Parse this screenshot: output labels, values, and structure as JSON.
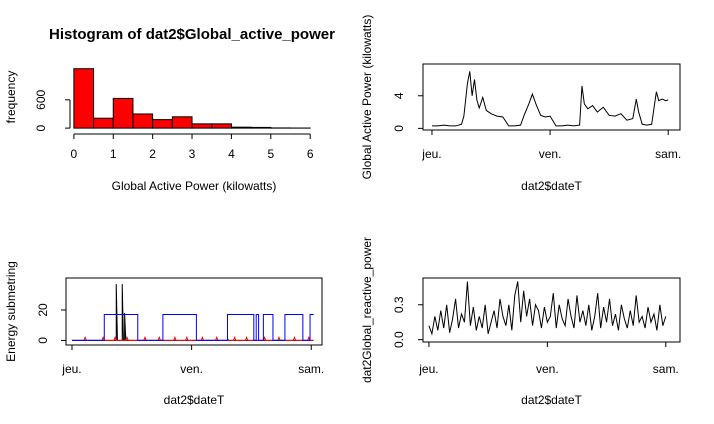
{
  "chart_data": [
    {
      "type": "histogram",
      "title": "Histogram of dat2$Global_active_power",
      "xlabel": "Global Active Power (kilowatts)",
      "ylabel": "frequency",
      "bins": [
        0,
        0.5,
        1,
        1.5,
        2,
        2.5,
        3,
        3.5,
        4,
        4.5,
        5,
        5.5,
        6
      ],
      "values": [
        1260,
        210,
        630,
        300,
        180,
        240,
        90,
        90,
        20,
        15,
        4,
        2
      ],
      "color": "#ff0000",
      "xlim": [
        -0.2,
        6.3
      ],
      "xticks": [
        0,
        1,
        2,
        3,
        4,
        5,
        6
      ],
      "ylim": [
        -40,
        1360
      ],
      "yticks": [
        0,
        600
      ]
    },
    {
      "type": "line",
      "xlabel": "dat2$dateT",
      "ylabel": "Global Active Power (kilowatts)",
      "color": "#000000",
      "x": [
        0,
        0.05,
        0.1,
        0.15,
        0.2,
        0.25,
        0.27,
        0.3,
        0.32,
        0.34,
        0.36,
        0.38,
        0.4,
        0.43,
        0.46,
        0.5,
        0.55,
        0.6,
        0.65,
        0.7,
        0.75,
        0.78,
        0.82,
        0.85,
        0.88,
        0.92,
        0.96,
        1.0,
        1.05,
        1.1,
        1.15,
        1.2,
        1.25,
        1.27,
        1.29,
        1.32,
        1.36,
        1.4,
        1.45,
        1.5,
        1.55,
        1.6,
        1.65,
        1.7,
        1.73,
        1.75,
        1.78,
        1.82,
        1.86,
        1.9,
        1.92,
        1.95,
        1.98,
        2.0
      ],
      "values": [
        0.3,
        0.3,
        0.4,
        0.3,
        0.3,
        0.5,
        1.5,
        5.5,
        7.0,
        4.0,
        6.0,
        3.5,
        2.5,
        3.8,
        2.2,
        1.8,
        1.5,
        1.4,
        0.3,
        0.3,
        0.4,
        1.6,
        3.0,
        4.2,
        3.0,
        1.6,
        1.4,
        1.5,
        0.3,
        0.3,
        0.4,
        0.3,
        0.4,
        5.2,
        3.0,
        2.4,
        2.8,
        2.0,
        2.6,
        1.6,
        1.5,
        1.8,
        1.0,
        1.2,
        3.6,
        2.0,
        0.5,
        0.4,
        0.5,
        4.5,
        3.4,
        3.6,
        3.4,
        3.5
      ],
      "xlim": [
        -0.076,
        2.1
      ],
      "xticks": [
        {
          "value": 0,
          "label": "jeu."
        },
        {
          "value": 1,
          "label": "ven."
        },
        {
          "value": 2,
          "label": "sam."
        }
      ],
      "ylim": [
        -0.2,
        7.9
      ],
      "yticks": [
        0,
        4
      ]
    },
    {
      "type": "line",
      "xlabel": "dat2$dateT",
      "ylabel": "Energy submetring",
      "series": [
        {
          "color": "#000000",
          "x": [
            0,
            0.37,
            0.37,
            0.38,
            0.42,
            0.42,
            0.43,
            0.44,
            0.44,
            0.45,
            1.3,
            1.3,
            1.31,
            2.02
          ],
          "values": [
            0,
            0,
            37,
            0,
            0,
            37,
            0,
            0,
            18,
            0,
            0,
            1,
            0,
            0
          ]
        },
        {
          "color": "#ff0000",
          "x": [
            0,
            0.1,
            0.11,
            0.12,
            0.25,
            0.26,
            0.27,
            0.35,
            0.36,
            0.37,
            0.45,
            0.46,
            0.47,
            0.6,
            0.61,
            0.62,
            0.72,
            0.73,
            0.74,
            0.85,
            0.86,
            0.87,
            0.95,
            0.96,
            0.97,
            1.08,
            1.09,
            1.1,
            1.2,
            1.21,
            1.22,
            1.35,
            1.36,
            1.37,
            1.45,
            1.46,
            1.47,
            1.6,
            1.61,
            1.62,
            1.72,
            1.73,
            1.74,
            1.85,
            1.86,
            1.87,
            1.97,
            1.98,
            1.99,
            2.02
          ],
          "values": [
            0,
            0,
            2,
            0,
            0,
            2,
            0,
            0,
            2,
            0,
            0,
            2,
            0,
            0,
            2,
            0,
            0,
            2,
            0,
            0,
            2,
            0,
            0,
            2,
            0,
            0,
            2,
            0,
            0,
            2,
            0,
            0,
            2,
            0,
            0,
            2,
            0,
            0,
            2,
            0,
            0,
            2,
            0,
            0,
            2,
            0,
            0,
            2,
            0,
            0
          ]
        },
        {
          "color": "#0000ff",
          "x": [
            0,
            0.27,
            0.27,
            0.55,
            0.55,
            0.76,
            0.76,
            1.04,
            1.04,
            1.3,
            1.3,
            1.52,
            1.52,
            1.54,
            1.54,
            1.56,
            1.56,
            1.6,
            1.6,
            1.68,
            1.68,
            1.78,
            1.78,
            1.93,
            1.93,
            1.99,
            1.99,
            2.02
          ],
          "values": [
            0,
            0,
            17,
            17,
            0,
            0,
            17,
            17,
            0,
            0,
            17,
            17,
            0,
            0,
            17,
            17,
            0,
            0,
            17,
            17,
            0,
            0,
            17,
            17,
            0,
            0,
            17,
            17
          ]
        }
      ],
      "xlim": [
        -0.05,
        2.09
      ],
      "xticks": [
        {
          "value": 0,
          "label": "jeu."
        },
        {
          "value": 1,
          "label": "ven."
        },
        {
          "value": 2,
          "label": "sam."
        }
      ],
      "ylim": [
        -3,
        41
      ],
      "yticks": [
        0,
        20
      ]
    },
    {
      "type": "line",
      "xlabel": "dat2$dateT",
      "ylabel": "dat2Global_reactive_power",
      "color": "#000000",
      "x": [
        0,
        0.025,
        0.05,
        0.075,
        0.1,
        0.125,
        0.15,
        0.175,
        0.2,
        0.225,
        0.25,
        0.275,
        0.3,
        0.325,
        0.35,
        0.375,
        0.4,
        0.425,
        0.45,
        0.475,
        0.5,
        0.525,
        0.55,
        0.575,
        0.6,
        0.625,
        0.65,
        0.675,
        0.7,
        0.725,
        0.75,
        0.775,
        0.8,
        0.825,
        0.85,
        0.875,
        0.9,
        0.925,
        0.95,
        0.975,
        1.0,
        1.025,
        1.05,
        1.075,
        1.1,
        1.125,
        1.15,
        1.175,
        1.2,
        1.225,
        1.25,
        1.275,
        1.3,
        1.325,
        1.35,
        1.375,
        1.4,
        1.425,
        1.45,
        1.475,
        1.5,
        1.525,
        1.55,
        1.575,
        1.6,
        1.625,
        1.65,
        1.675,
        1.7,
        1.725,
        1.75,
        1.775,
        1.8,
        1.825,
        1.85,
        1.875,
        1.9,
        1.925,
        1.95,
        1.975,
        2.0
      ],
      "values": [
        0.12,
        0.05,
        0.2,
        0.08,
        0.25,
        0.1,
        0.3,
        0.06,
        0.18,
        0.35,
        0.1,
        0.22,
        0.15,
        0.5,
        0.12,
        0.28,
        0.08,
        0.2,
        0.1,
        0.3,
        0.05,
        0.15,
        0.25,
        0.1,
        0.35,
        0.2,
        0.12,
        0.3,
        0.08,
        0.38,
        0.5,
        0.15,
        0.42,
        0.2,
        0.35,
        0.12,
        0.3,
        0.25,
        0.1,
        0.28,
        0.15,
        0.2,
        0.4,
        0.1,
        0.3,
        0.18,
        0.12,
        0.35,
        0.2,
        0.1,
        0.38,
        0.15,
        0.25,
        0.12,
        0.3,
        0.08,
        0.2,
        0.4,
        0.1,
        0.28,
        0.15,
        0.35,
        0.12,
        0.22,
        0.08,
        0.3,
        0.18,
        0.1,
        0.25,
        0.12,
        0.38,
        0.15,
        0.2,
        0.1,
        0.28,
        0.15,
        0.22,
        0.08,
        0.3,
        0.12,
        0.2
      ],
      "xlim": [
        -0.05,
        2.12
      ],
      "xticks": [
        {
          "value": 0,
          "label": "jeu."
        },
        {
          "value": 1,
          "label": "ven."
        },
        {
          "value": 2,
          "label": "sam."
        }
      ],
      "ylim": [
        -0.02,
        0.53
      ],
      "yticks": [
        {
          "value": 0,
          "label": "0.0"
        },
        0.3
      ]
    }
  ]
}
